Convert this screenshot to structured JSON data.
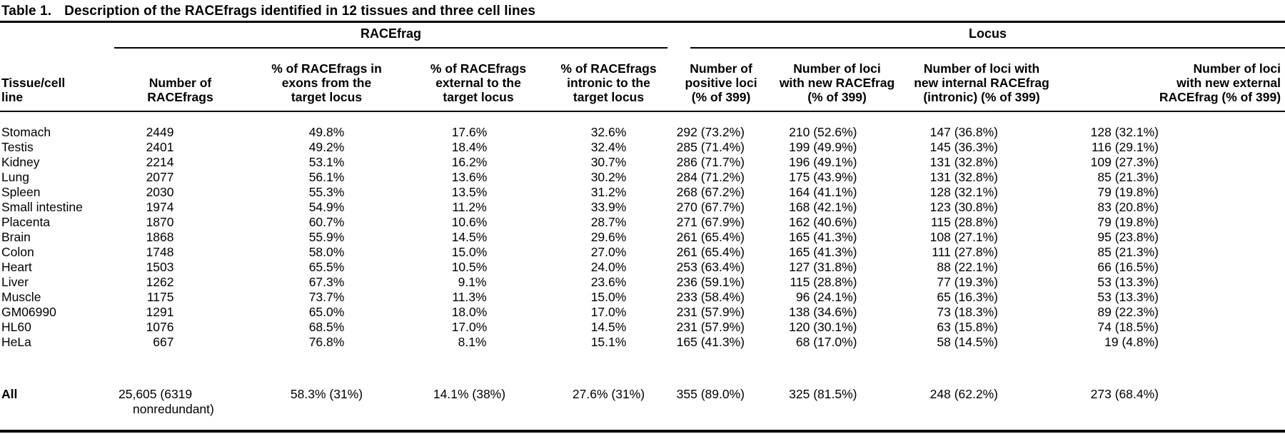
{
  "table": {
    "title_label": "Table 1.",
    "title_text": "Description of the RACEfrags identified in 12 tissues and three cell lines",
    "group_headers": [
      {
        "label": "RACEfrag"
      },
      {
        "label": "Locus"
      }
    ],
    "columns": [
      {
        "id": "tissue",
        "header": "Tissue/cell\nline"
      },
      {
        "id": "num-racefrags",
        "header": "Number of\nRACEfrags"
      },
      {
        "id": "pct-exons",
        "header": "% of RACEfrags in\nexons from the\ntarget locus"
      },
      {
        "id": "pct-external",
        "header": "% of RACEfrags\nexternal to the\ntarget locus"
      },
      {
        "id": "pct-intronic",
        "header": "% of RACEfrags\nintronic to the\ntarget locus"
      },
      {
        "id": "positive-loci",
        "header": "Number of\npositive loci\n(% of 399)"
      },
      {
        "id": "loci-new-racefrag",
        "header": "Number of loci\nwith new RACEfrag\n(% of 399)"
      },
      {
        "id": "loci-new-internal",
        "header": "Number of loci with\nnew internal RACEfrag\n(intronic) (% of 399)"
      },
      {
        "id": "loci-new-external",
        "header": "Number of loci\nwith new external\nRACEfrag (% of 399)"
      }
    ],
    "rows": [
      {
        "tissue": "Stomach",
        "values": [
          "2449",
          "49.8%",
          "17.6%",
          "32.6%",
          "292 (73.2%)",
          "210 (52.6%)",
          "147 (36.8%)",
          "128 (32.1%)"
        ]
      },
      {
        "tissue": "Testis",
        "values": [
          "2401",
          "49.2%",
          "18.4%",
          "32.4%",
          "285 (71.4%)",
          "199 (49.9%)",
          "145 (36.3%)",
          "116 (29.1%)"
        ]
      },
      {
        "tissue": "Kidney",
        "values": [
          "2214",
          "53.1%",
          "16.2%",
          "30.7%",
          "286 (71.7%)",
          "196 (49.1%)",
          "131 (32.8%)",
          "109 (27.3%)"
        ]
      },
      {
        "tissue": "Lung",
        "values": [
          "2077",
          "56.1%",
          "13.6%",
          "30.2%",
          "284 (71.2%)",
          "175 (43.9%)",
          "131 (32.8%)",
          "85 (21.3%)"
        ]
      },
      {
        "tissue": "Spleen",
        "values": [
          "2030",
          "55.3%",
          "13.5%",
          "31.2%",
          "268 (67.2%)",
          "164 (41.1%)",
          "128 (32.1%)",
          "79 (19.8%)"
        ]
      },
      {
        "tissue": "Small intestine",
        "values": [
          "1974",
          "54.9%",
          "11.2%",
          "33.9%",
          "270 (67.7%)",
          "168 (42.1%)",
          "123 (30.8%)",
          "83 (20.8%)"
        ]
      },
      {
        "tissue": "Placenta",
        "values": [
          "1870",
          "60.7%",
          "10.6%",
          "28.7%",
          "271 (67.9%)",
          "162 (40.6%)",
          "115 (28.8%)",
          "79 (19.8%)"
        ]
      },
      {
        "tissue": "Brain",
        "values": [
          "1868",
          "55.9%",
          "14.5%",
          "29.6%",
          "261 (65.4%)",
          "165 (41.3%)",
          "108 (27.1%)",
          "95 (23.8%)"
        ]
      },
      {
        "tissue": "Colon",
        "values": [
          "1748",
          "58.0%",
          "15.0%",
          "27.0%",
          "261 (65.4%)",
          "165 (41.3%)",
          "111 (27.8%)",
          "85 (21.3%)"
        ]
      },
      {
        "tissue": "Heart",
        "values": [
          "1503",
          "65.5%",
          "10.5%",
          "24.0%",
          "253 (63.4%)",
          "127 (31.8%)",
          "88 (22.1%)",
          "66 (16.5%)"
        ]
      },
      {
        "tissue": "Liver",
        "values": [
          "1262",
          "67.3%",
          "9.1%",
          "23.6%",
          "236 (59.1%)",
          "115 (28.8%)",
          "77 (19.3%)",
          "53 (13.3%)"
        ]
      },
      {
        "tissue": "Muscle",
        "values": [
          "1175",
          "73.7%",
          "11.3%",
          "15.0%",
          "233 (58.4%)",
          "96 (24.1%)",
          "65 (16.3%)",
          "53 (13.3%)"
        ]
      },
      {
        "tissue": "GM06990",
        "values": [
          "1291",
          "65.0%",
          "18.0%",
          "17.0%",
          "231 (57.9%)",
          "138 (34.6%)",
          "73 (18.3%)",
          "89 (22.3%)"
        ]
      },
      {
        "tissue": "HL60",
        "values": [
          "1076",
          "68.5%",
          "17.0%",
          "14.5%",
          "231 (57.9%)",
          "120 (30.1%)",
          "63 (15.8%)",
          "74 (18.5%)"
        ]
      },
      {
        "tissue": "HeLa",
        "values": [
          "667",
          "76.8%",
          "8.1%",
          "15.1%",
          "165 (41.3%)",
          "68 (17.0%)",
          "58 (14.5%)",
          "19 (4.8%)"
        ]
      }
    ],
    "all_row": {
      "label": "All",
      "values": [
        "25,605 (6319 nonredundant)",
        "58.3% (31%)",
        "14.1% (38%)",
        "27.6% (31%)",
        "355 (89.0%)",
        "325 (81.5%)",
        "248 (62.2%)",
        "273 (68.4%)"
      ]
    }
  }
}
